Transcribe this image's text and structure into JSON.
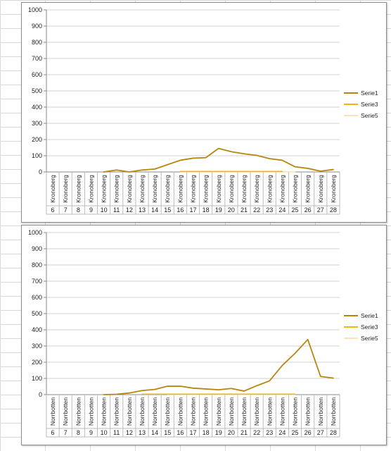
{
  "charts": [
    {
      "type": "line",
      "ylim": [
        0,
        1000
      ],
      "yticks": [
        0,
        100,
        200,
        300,
        400,
        500,
        600,
        700,
        800,
        900,
        1000
      ],
      "region": "Kronoberg",
      "categories": [
        "6",
        "7",
        "8",
        "9",
        "10",
        "11",
        "12",
        "13",
        "14",
        "15",
        "16",
        "17",
        "18",
        "19",
        "20",
        "21",
        "22",
        "23",
        "24",
        "25",
        "26",
        "27",
        "28"
      ],
      "series": [
        {
          "name": "Serie1",
          "color": "#b8860b",
          "values": [
            null,
            null,
            null,
            null,
            0,
            12,
            0,
            12,
            18,
            45,
            72,
            85,
            88,
            145,
            125,
            112,
            102,
            82,
            72,
            32,
            22,
            5,
            15
          ]
        },
        {
          "name": "Serie3",
          "color": "#f2b705",
          "values": [
            null,
            null,
            null,
            null,
            null,
            null,
            null,
            null,
            null,
            null,
            3,
            3,
            3,
            3,
            3,
            3,
            3,
            3,
            3,
            null,
            null,
            null,
            null
          ]
        },
        {
          "name": "Serie5",
          "color": "#fbe3b5",
          "values": [
            null,
            null,
            null,
            null,
            null,
            null,
            null,
            null,
            null,
            null,
            1,
            1,
            1,
            1,
            1,
            1,
            1,
            1,
            1,
            1,
            null,
            null,
            null
          ]
        }
      ],
      "legend_position": "right",
      "grid": true
    },
    {
      "type": "line",
      "ylim": [
        0,
        1000
      ],
      "yticks": [
        0,
        100,
        200,
        300,
        400,
        500,
        600,
        700,
        800,
        900,
        1000
      ],
      "region": "Norrbotten",
      "categories": [
        "6",
        "7",
        "8",
        "9",
        "10",
        "11",
        "12",
        "13",
        "14",
        "15",
        "16",
        "17",
        "18",
        "19",
        "20",
        "21",
        "22",
        "23",
        "24",
        "25",
        "26",
        "27",
        "28"
      ],
      "series": [
        {
          "name": "Serie1",
          "color": "#b8860b",
          "values": [
            null,
            null,
            null,
            null,
            0,
            2,
            10,
            25,
            32,
            52,
            52,
            40,
            35,
            30,
            38,
            22,
            55,
            85,
            180,
            255,
            340,
            112,
            102
          ]
        },
        {
          "name": "Serie3",
          "color": "#f2b705",
          "values": [
            null,
            null,
            null,
            null,
            null,
            null,
            null,
            3,
            3,
            3,
            3,
            3,
            3,
            3,
            3,
            3,
            3,
            3,
            3,
            3,
            null,
            null,
            null
          ]
        },
        {
          "name": "Serie5",
          "color": "#fbe3b5",
          "values": [
            null,
            null,
            null,
            null,
            null,
            null,
            null,
            null,
            null,
            1,
            1,
            1,
            1,
            1,
            1,
            1,
            1,
            1,
            1,
            1,
            null,
            null,
            null
          ]
        }
      ],
      "legend_position": "right",
      "grid": true
    }
  ],
  "chart_data": [
    {
      "type": "line",
      "ylim": [
        0,
        1000
      ],
      "categories": [
        "6",
        "7",
        "8",
        "9",
        "10",
        "11",
        "12",
        "13",
        "14",
        "15",
        "16",
        "17",
        "18",
        "19",
        "20",
        "21",
        "22",
        "23",
        "24",
        "25",
        "26",
        "27",
        "28"
      ],
      "x_group_label": "Kronoberg",
      "series": [
        {
          "name": "Serie1",
          "values": [
            null,
            null,
            null,
            null,
            0,
            12,
            0,
            12,
            18,
            45,
            72,
            85,
            88,
            145,
            125,
            112,
            102,
            82,
            72,
            32,
            22,
            5,
            15
          ]
        },
        {
          "name": "Serie3",
          "values": [
            null,
            null,
            null,
            null,
            null,
            null,
            null,
            null,
            null,
            null,
            3,
            3,
            3,
            3,
            3,
            3,
            3,
            3,
            3,
            null,
            null,
            null,
            null
          ]
        },
        {
          "name": "Serie5",
          "values": [
            null,
            null,
            null,
            null,
            null,
            null,
            null,
            null,
            null,
            null,
            1,
            1,
            1,
            1,
            1,
            1,
            1,
            1,
            1,
            1,
            null,
            null,
            null
          ]
        }
      ],
      "legend_position": "right",
      "grid": true
    },
    {
      "type": "line",
      "ylim": [
        0,
        1000
      ],
      "categories": [
        "6",
        "7",
        "8",
        "9",
        "10",
        "11",
        "12",
        "13",
        "14",
        "15",
        "16",
        "17",
        "18",
        "19",
        "20",
        "21",
        "22",
        "23",
        "24",
        "25",
        "26",
        "27",
        "28"
      ],
      "x_group_label": "Norrbotten",
      "series": [
        {
          "name": "Serie1",
          "values": [
            null,
            null,
            null,
            null,
            0,
            2,
            10,
            25,
            32,
            52,
            52,
            40,
            35,
            30,
            38,
            22,
            55,
            85,
            180,
            255,
            340,
            112,
            102
          ]
        },
        {
          "name": "Serie3",
          "values": [
            null,
            null,
            null,
            null,
            null,
            null,
            null,
            3,
            3,
            3,
            3,
            3,
            3,
            3,
            3,
            3,
            3,
            3,
            3,
            3,
            null,
            null,
            null
          ]
        },
        {
          "name": "Serie5",
          "values": [
            null,
            null,
            null,
            null,
            null,
            null,
            null,
            null,
            null,
            1,
            1,
            1,
            1,
            1,
            1,
            1,
            1,
            1,
            1,
            1,
            null,
            null,
            null
          ]
        }
      ],
      "legend_position": "right",
      "grid": true
    }
  ]
}
